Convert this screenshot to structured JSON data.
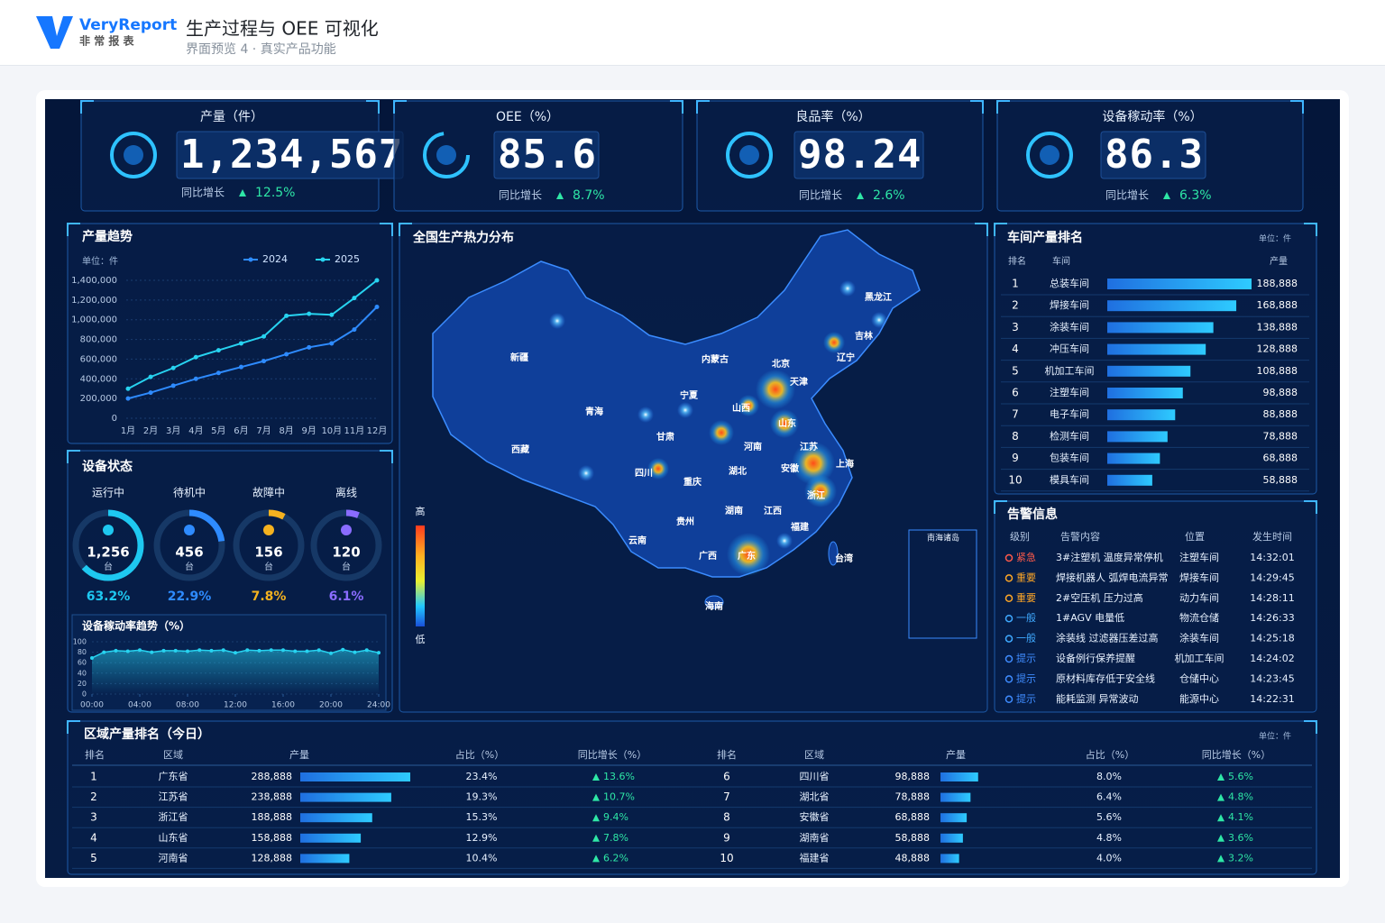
{
  "header": {
    "logo": "VeryReport",
    "logo_sub": "非 常 报 表",
    "title": "生产过程与 OEE 可视化",
    "subtitle": "界面预览 4 · 真实产品功能"
  },
  "kpis": [
    {
      "label": "产量（件）",
      "value": "1,234,567",
      "growth_label": "同比增长",
      "growth": "12.5%"
    },
    {
      "label": "OEE（%）",
      "value": "85.6",
      "growth_label": "同比增长",
      "growth": "8.7%"
    },
    {
      "label": "良品率（%）",
      "value": "98.24",
      "growth_label": "同比增长",
      "growth": "2.6%"
    },
    {
      "label": "设备稼动率（%）",
      "value": "86.3",
      "growth_label": "同比增长",
      "growth": "6.3%"
    }
  ],
  "chart_data": [
    {
      "type": "line",
      "title": "产量趋势",
      "y_label": "单位：件",
      "categories": [
        "1月",
        "2月",
        "3月",
        "4月",
        "5月",
        "6月",
        "7月",
        "8月",
        "9月",
        "10月",
        "11月",
        "12月"
      ],
      "series": [
        {
          "name": "2024",
          "color": "#2e8bff",
          "values": [
            200000,
            260000,
            330000,
            400000,
            460000,
            520000,
            580000,
            650000,
            720000,
            760000,
            900000,
            1130000
          ]
        },
        {
          "name": "2025",
          "color": "#27d3f0",
          "values": [
            300000,
            420000,
            510000,
            620000,
            690000,
            760000,
            830000,
            1040000,
            1060000,
            1050000,
            1220000,
            1400000
          ]
        }
      ],
      "ylim": [
        0,
        1400000
      ],
      "yticks": [
        0,
        {
          "value": 200000,
          "label": "200,000"
        },
        {
          "value": 400000,
          "label": "400,000"
        },
        {
          "value": 600000,
          "label": "600,000"
        },
        {
          "value": 800000,
          "label": "800,000"
        },
        {
          "value": 1000000,
          "label": "1,000,000"
        },
        {
          "value": 1200000,
          "label": "1,200,000"
        },
        {
          "value": 1400000,
          "label": "1,400,000"
        }
      ],
      "legend": "top-right",
      "grid": true
    },
    {
      "type": "area",
      "title": "设备稼动率趋势（%）",
      "color": "#27d3f0",
      "x": [
        0,
        1,
        2,
        3,
        4,
        5,
        6,
        7,
        8,
        9,
        10,
        11,
        12,
        13,
        14,
        15,
        16,
        17,
        18,
        19,
        20,
        21,
        22,
        23,
        24
      ],
      "values": [
        69,
        80,
        83,
        82,
        84,
        80,
        83,
        83,
        82,
        84,
        83,
        84,
        79,
        84,
        83,
        84,
        84,
        82,
        82,
        84,
        78,
        85,
        80,
        84,
        79
      ],
      "xlim": [
        0,
        24
      ],
      "xticks": [
        {
          "value": 0,
          "label": "00:00"
        },
        {
          "value": 4,
          "label": "04:00"
        },
        {
          "value": 8,
          "label": "08:00"
        },
        {
          "value": 12,
          "label": "12:00"
        },
        {
          "value": 16,
          "label": "16:00"
        },
        {
          "value": 20,
          "label": "20:00"
        },
        {
          "value": 24,
          "label": "24:00"
        }
      ],
      "ylim": [
        0,
        100
      ],
      "yticks": [
        0,
        20,
        40,
        60,
        80,
        100
      ]
    }
  ],
  "device_status": {
    "title": "设备状态",
    "labels": [
      "运行中",
      "待机中",
      "故障中",
      "离线"
    ],
    "counts": [
      "1,256",
      "456",
      "156",
      "120"
    ],
    "unit": "台",
    "values": [
      63.2,
      22.9,
      7.8,
      6.1
    ],
    "value_labels": [
      "63.2%",
      "22.9%",
      "7.8%",
      "6.1%"
    ],
    "colors": [
      "#1ec8f0",
      "#2e8bff",
      "#f5b21f",
      "#8a6cff"
    ]
  },
  "map": {
    "title": "全国生产热力分布",
    "provinces": [
      "黑龙江",
      "吉林",
      "辽宁",
      "内蒙古",
      "北京",
      "天津",
      "新疆",
      "宁夏",
      "山西",
      "青海",
      "山东",
      "甘肃",
      "河南",
      "江苏",
      "西藏",
      "四川",
      "湖北",
      "安徽",
      "上海",
      "重庆",
      "浙江",
      "湖南",
      "江西",
      "贵州",
      "福建",
      "云南",
      "广西",
      "广东",
      "台湾",
      "海南"
    ],
    "legend_high": "高",
    "legend_low": "低",
    "inset": "南海诸岛"
  },
  "workshops": {
    "title": "车间产量排名",
    "unit": "单位：件",
    "columns": [
      "排名",
      "车间",
      "产量"
    ],
    "rows": [
      {
        "rank": "1",
        "name": "总装车间",
        "value": 188888,
        "label": "188,888"
      },
      {
        "rank": "2",
        "name": "焊接车间",
        "value": 168888,
        "label": "168,888"
      },
      {
        "rank": "3",
        "name": "涂装车间",
        "value": 138888,
        "label": "138,888"
      },
      {
        "rank": "4",
        "name": "冲压车间",
        "value": 128888,
        "label": "128,888"
      },
      {
        "rank": "5",
        "name": "机加工车间",
        "value": 108888,
        "label": "108,888"
      },
      {
        "rank": "6",
        "name": "注塑车间",
        "value": 98888,
        "label": "98,888"
      },
      {
        "rank": "7",
        "name": "电子车间",
        "value": 88888,
        "label": "88,888"
      },
      {
        "rank": "8",
        "name": "检测车间",
        "value": 78888,
        "label": "78,888"
      },
      {
        "rank": "9",
        "name": "包装车间",
        "value": 68888,
        "label": "68,888"
      },
      {
        "rank": "10",
        "name": "模具车间",
        "value": 58888,
        "label": "58,888"
      }
    ]
  },
  "alerts": {
    "title": "告警信息",
    "columns": [
      "级别",
      "告警内容",
      "位置",
      "发生时间"
    ],
    "rows": [
      {
        "level": "紧急",
        "color": "#ff5a4a",
        "content": "3#注塑机 温度异常停机",
        "location": "注塑车间",
        "time": "14:32:01"
      },
      {
        "level": "重要",
        "color": "#ffa726",
        "content": "焊接机器人 弧焊电流异常",
        "location": "焊接车间",
        "time": "14:29:45"
      },
      {
        "level": "重要",
        "color": "#ffa726",
        "content": "2#空压机 压力过高",
        "location": "动力车间",
        "time": "14:28:11"
      },
      {
        "level": "一般",
        "color": "#3fa9ff",
        "content": "1#AGV 电量低",
        "location": "物流仓储",
        "time": "14:26:33"
      },
      {
        "level": "一般",
        "color": "#3fa9ff",
        "content": "涂装线 过滤器压差过高",
        "location": "涂装车间",
        "time": "14:25:18"
      },
      {
        "level": "提示",
        "color": "#3f8cff",
        "content": "设备例行保养提醒",
        "location": "机加工车间",
        "time": "14:24:02"
      },
      {
        "level": "提示",
        "color": "#3f8cff",
        "content": "原材料库存低于安全线",
        "location": "仓储中心",
        "time": "14:23:45"
      },
      {
        "level": "提示",
        "color": "#3f8cff",
        "content": "能耗监测 异常波动",
        "location": "能源中心",
        "time": "14:22:31"
      }
    ]
  },
  "regions": {
    "title": "区域产量排名（今日）",
    "unit": "单位：件",
    "columns": [
      "排名",
      "区域",
      "产量",
      "占比（%）",
      "同比增长（%）"
    ],
    "rows": [
      {
        "rank": "1",
        "region": "广东省",
        "value": 288888,
        "label": "288,888",
        "share": "23.4%",
        "growth": "13.6%"
      },
      {
        "rank": "2",
        "region": "江苏省",
        "value": 238888,
        "label": "238,888",
        "share": "19.3%",
        "growth": "10.7%"
      },
      {
        "rank": "3",
        "region": "浙江省",
        "value": 188888,
        "label": "188,888",
        "share": "15.3%",
        "growth": "9.4%"
      },
      {
        "rank": "4",
        "region": "山东省",
        "value": 158888,
        "label": "158,888",
        "share": "12.9%",
        "growth": "7.8%"
      },
      {
        "rank": "5",
        "region": "河南省",
        "value": 128888,
        "label": "128,888",
        "share": "10.4%",
        "growth": "6.2%"
      },
      {
        "rank": "6",
        "region": "四川省",
        "value": 98888,
        "label": "98,888",
        "share": "8.0%",
        "growth": "5.6%"
      },
      {
        "rank": "7",
        "region": "湖北省",
        "value": 78888,
        "label": "78,888",
        "share": "6.4%",
        "growth": "4.8%"
      },
      {
        "rank": "8",
        "region": "安徽省",
        "value": 68888,
        "label": "68,888",
        "share": "5.6%",
        "growth": "4.1%"
      },
      {
        "rank": "9",
        "region": "湖南省",
        "value": 58888,
        "label": "58,888",
        "share": "4.8%",
        "growth": "3.6%"
      },
      {
        "rank": "10",
        "region": "福建省",
        "value": 48888,
        "label": "48,888",
        "share": "4.0%",
        "growth": "3.2%"
      }
    ]
  }
}
